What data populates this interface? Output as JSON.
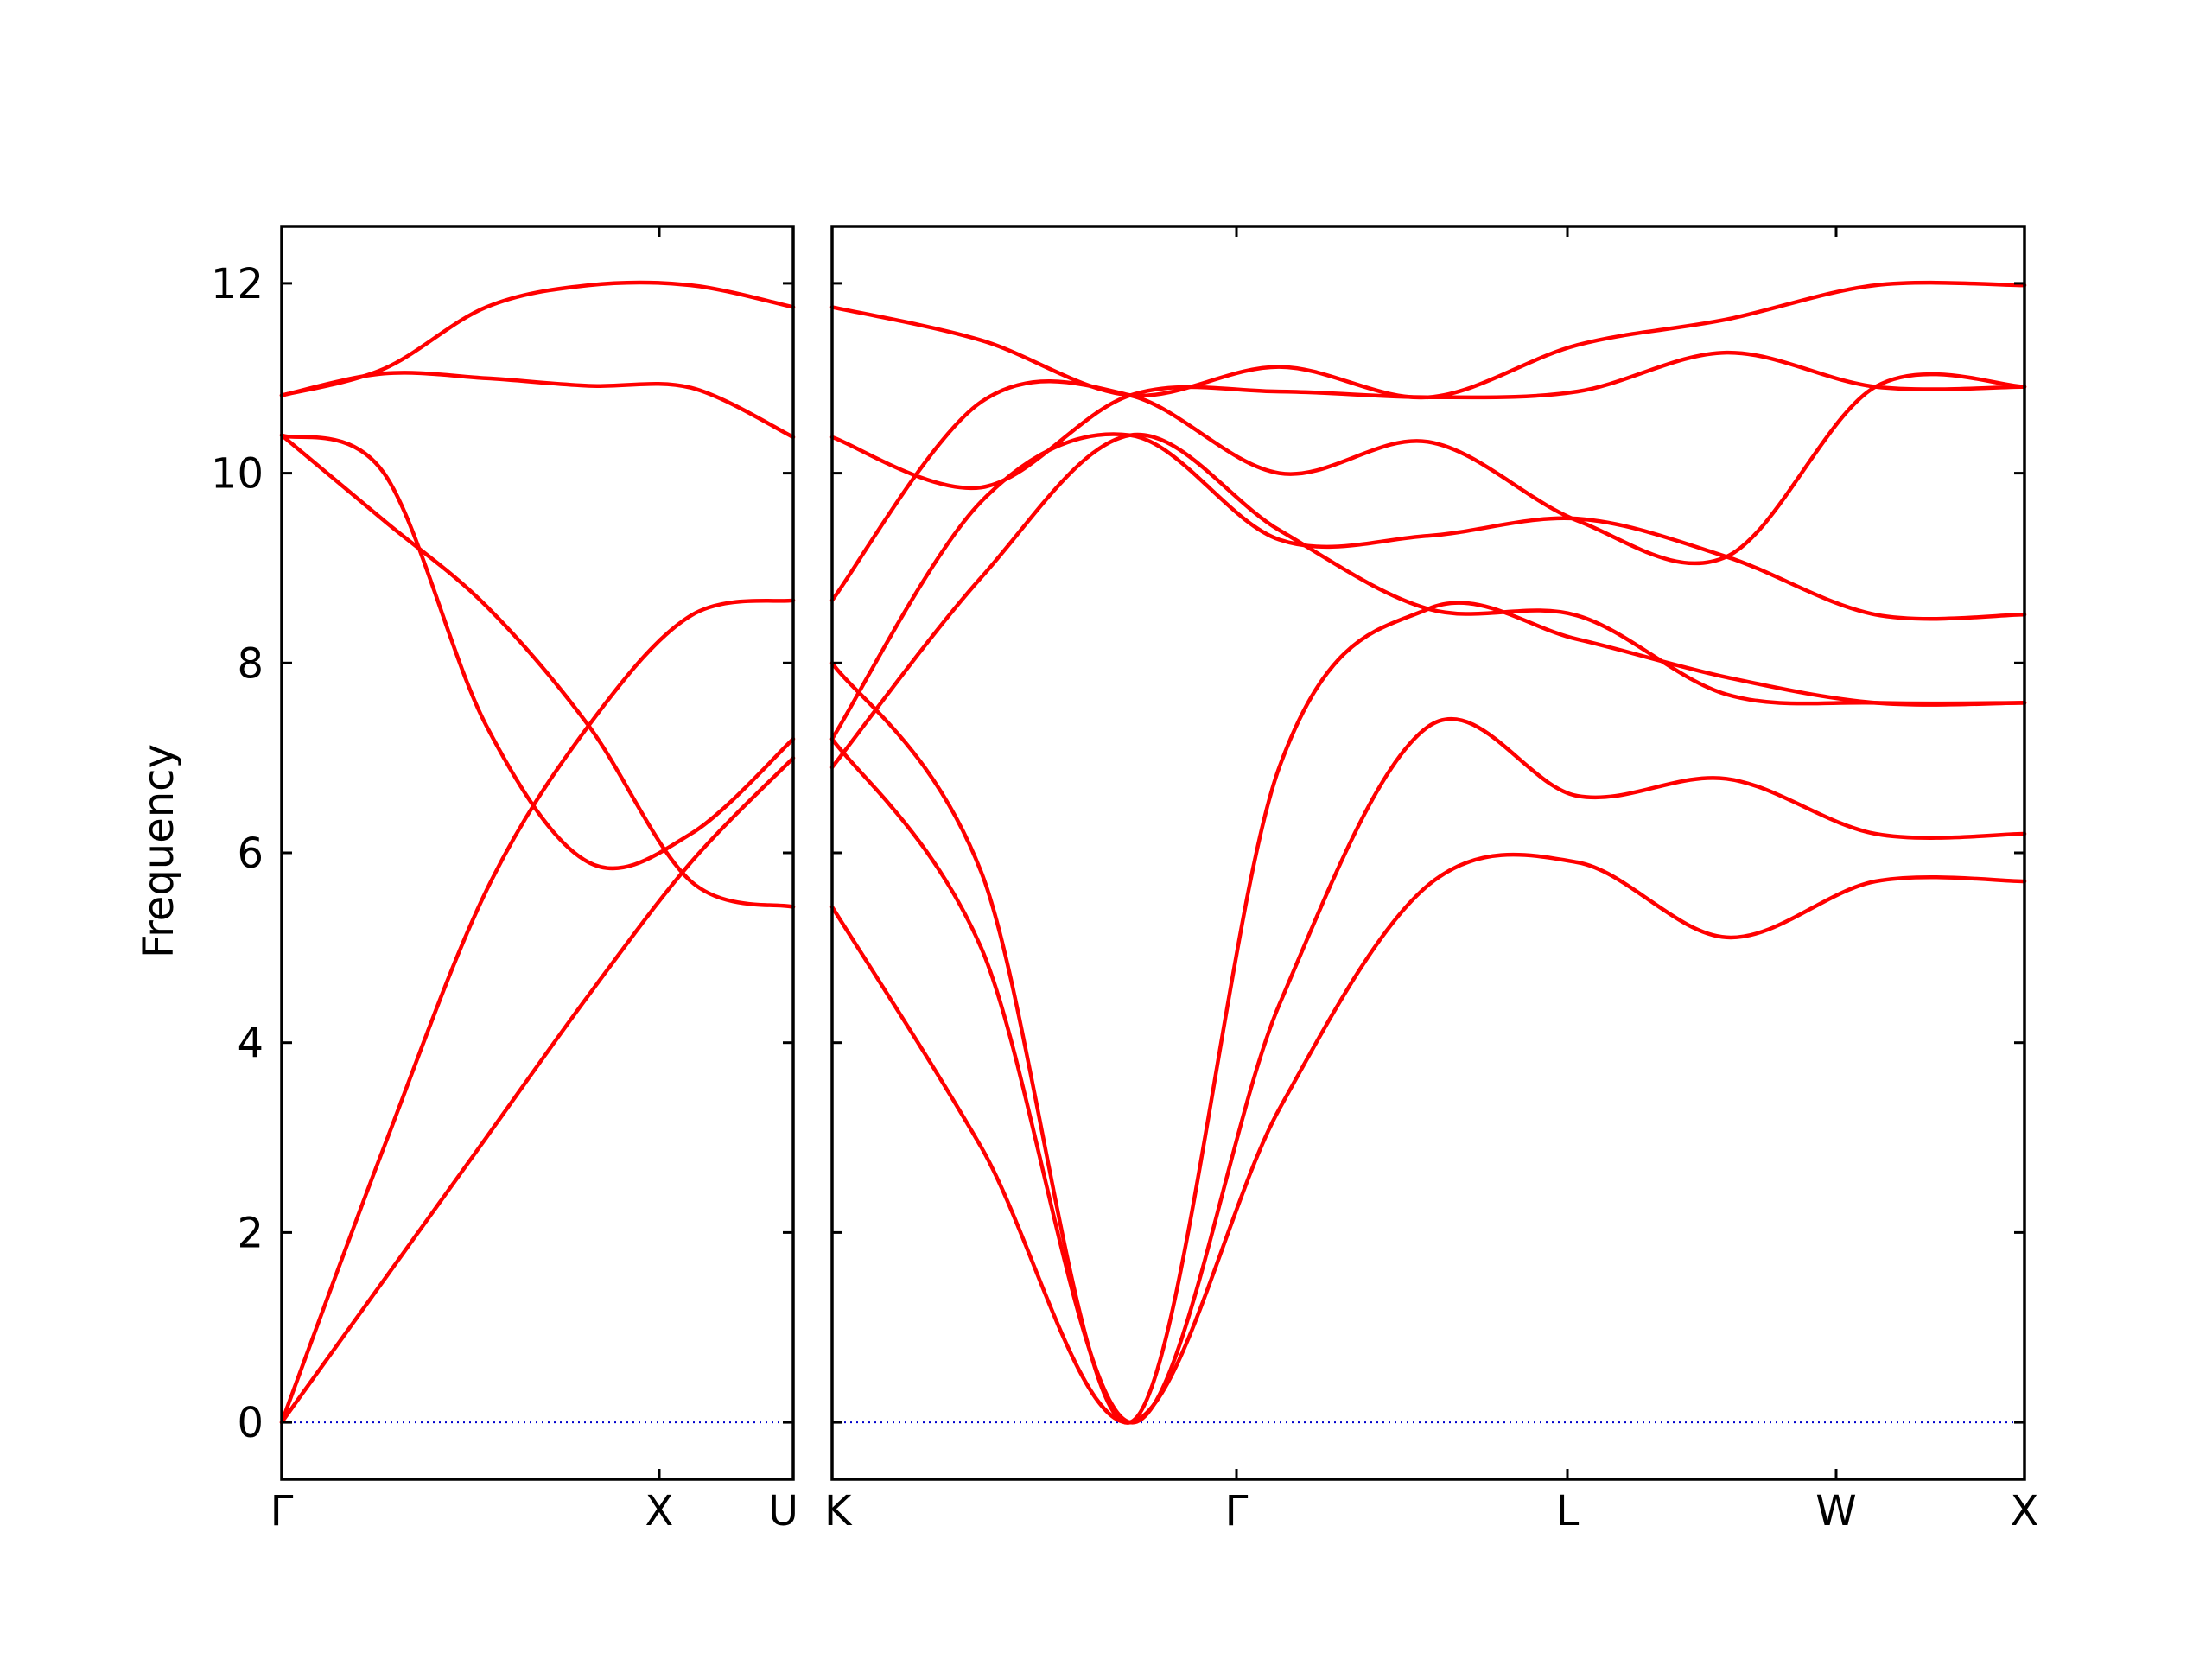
{
  "chart_data": {
    "type": "line",
    "title": "",
    "ylabel": "Frequency",
    "xlabel": "",
    "ylim": [
      -0.6,
      12.6
    ],
    "yticks": [
      0,
      2,
      4,
      6,
      8,
      10,
      12
    ],
    "grid": false,
    "colors": {
      "bands": "#ff0000",
      "zero_line": "#0000cc",
      "axes": "#000000"
    },
    "panels": [
      {
        "name": "left",
        "path_labels": [
          "Γ",
          "X",
          "U"
        ],
        "x": [
          0.0,
          0.25,
          0.5,
          0.75,
          1.0,
          1.25
        ],
        "series": [
          {
            "values": [
              0.0,
              1.5,
              3.0,
              4.5,
              5.9,
              7.0
            ]
          },
          {
            "values": [
              0.0,
              2.9,
              5.6,
              7.34,
              8.5,
              8.66
            ]
          },
          {
            "values": [
              10.4,
              9.5,
              8.6,
              7.34,
              5.7,
              5.43
            ]
          },
          {
            "values": [
              10.4,
              10.0,
              7.34,
              5.9,
              6.2,
              7.2
            ]
          },
          {
            "values": [
              10.82,
              11.05,
              11.0,
              10.92,
              10.9,
              10.38
            ]
          },
          {
            "values": [
              10.82,
              11.1,
              11.75,
              11.98,
              11.98,
              11.75
            ]
          }
        ]
      },
      {
        "name": "right",
        "path_labels": [
          "K",
          "Γ",
          "L",
          "W",
          "X"
        ],
        "x": [
          0.0,
          0.5,
          1.0,
          1.5,
          2.0,
          2.5,
          3.0,
          3.5,
          4.0
        ],
        "series": [
          {
            "values": [
              5.43,
              2.9,
              0.0,
              3.3,
              5.66,
              5.9,
              5.11,
              5.7,
              5.7
            ]
          },
          {
            "values": [
              7.2,
              5.0,
              0.0,
              4.4,
              7.33,
              6.6,
              6.78,
              6.2,
              6.2
            ]
          },
          {
            "values": [
              8.0,
              5.8,
              0.0,
              6.9,
              8.57,
              8.25,
              7.85,
              7.58,
              7.58
            ]
          },
          {
            "values": [
              6.9,
              8.9,
              10.4,
              9.4,
              8.57,
              8.5,
              7.67,
              7.58,
              7.58
            ]
          },
          {
            "values": [
              7.2,
              9.7,
              10.4,
              9.3,
              9.34,
              9.52,
              9.12,
              8.51,
              8.51
            ]
          },
          {
            "values": [
              8.66,
              10.75,
              10.82,
              10.0,
              10.33,
              9.5,
              9.12,
              10.91,
              10.91
            ]
          },
          {
            "values": [
              10.38,
              9.85,
              10.82,
              10.86,
              10.8,
              10.86,
              11.27,
              10.91,
              10.91
            ]
          },
          {
            "values": [
              11.75,
              11.4,
              10.82,
              11.12,
              10.8,
              11.35,
              11.62,
              11.98,
              11.98
            ]
          }
        ]
      }
    ]
  }
}
